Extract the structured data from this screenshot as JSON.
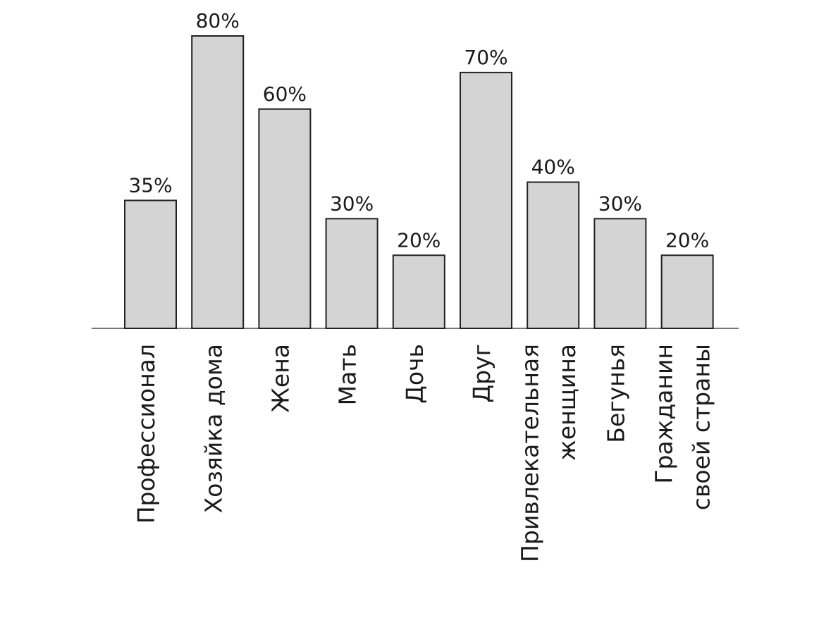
{
  "chart_data": {
    "type": "bar",
    "categories": [
      "Профессионал",
      "Хозяйка дома",
      "Жена",
      "Мать",
      "Дочь",
      "Друг",
      "Привлекательная\nженщина",
      "Бегунья",
      "Гражданин\nсвоей страны"
    ],
    "values": [
      35,
      80,
      60,
      30,
      20,
      70,
      40,
      30,
      20
    ],
    "value_labels": [
      "35%",
      "80%",
      "60%",
      "30%",
      "20%",
      "70%",
      "40%",
      "30%",
      "20%"
    ],
    "color": "#d4d4d4"
  }
}
